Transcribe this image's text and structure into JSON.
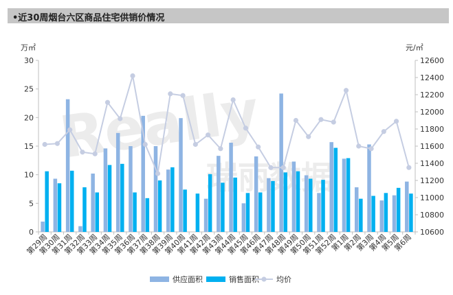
{
  "title": "•近30周烟台六区商品住宅供销价情况",
  "colors": {
    "supply": "#8eb4e3",
    "sales": "#00b0f0",
    "price": "#c5cde2",
    "title_bg": "#c6c6c6",
    "axis": "#bfbfbf"
  },
  "chart_data": {
    "type": "bar",
    "title": "•近30周烟台六区商品住宅供销价情况",
    "categories": [
      "第29周",
      "第30周",
      "第31周",
      "第32周",
      "第33周",
      "第34周",
      "第35周",
      "第36周",
      "第37周",
      "第38周",
      "第39周",
      "第40周",
      "第41周",
      "第42周",
      "第43周",
      "第44周",
      "第45周",
      "第46周",
      "第47周",
      "第48周",
      "第49周",
      "第50周",
      "第51周",
      "第52周",
      "第1周",
      "第2周",
      "第3周",
      "第4周",
      "第5周",
      "第6周"
    ],
    "y_left": {
      "unit": "万㎡",
      "min": 0,
      "max": 30,
      "ticks": [
        0,
        5,
        10,
        15,
        20,
        25,
        30
      ]
    },
    "y_right": {
      "unit": "元/㎡",
      "min": 10600,
      "max": 12600,
      "ticks": [
        10600,
        10800,
        11000,
        11200,
        11400,
        11600,
        11800,
        12000,
        12200,
        12400,
        12600
      ]
    },
    "series": [
      {
        "name": "供应面积",
        "type": "bar",
        "axis": "left",
        "values": [
          1.8,
          9.3,
          23.2,
          1.0,
          10.2,
          14.6,
          17.3,
          15.0,
          20.3,
          15.0,
          10.9,
          19.9,
          0,
          5.8,
          13.3,
          15.6,
          5.0,
          13.2,
          9.4,
          24.2,
          12.3,
          9.9,
          6.8,
          15.7,
          12.8,
          7.8,
          15.3,
          5.5,
          6.4,
          8.8
        ]
      },
      {
        "name": "销售面积",
        "type": "bar",
        "axis": "left",
        "values": [
          10.6,
          8.5,
          10.7,
          7.8,
          6.9,
          11.7,
          11.9,
          6.9,
          5.9,
          9.0,
          11.3,
          7.4,
          6.7,
          10.1,
          8.6,
          9.5,
          6.8,
          6.9,
          8.9,
          10.4,
          10.6,
          9.3,
          9.1,
          14.7,
          12.9,
          5.8,
          6.3,
          6.8,
          7.7,
          6.7
        ]
      },
      {
        "name": "均价",
        "type": "line",
        "axis": "right",
        "values": [
          11620,
          11630,
          11790,
          11530,
          11510,
          12110,
          11920,
          12420,
          11620,
          11280,
          12210,
          12190,
          11620,
          11730,
          11570,
          12140,
          11810,
          11590,
          11350,
          11350,
          11900,
          11710,
          11910,
          11880,
          12250,
          11600,
          11570,
          11770,
          11890,
          11350
        ]
      }
    ],
    "legend": {
      "position": "bottom",
      "entries": [
        "供应面积",
        "销售面积",
        "均价"
      ]
    }
  },
  "watermark": {
    "latin": "Really",
    "cjk": "瑞丽数据"
  }
}
